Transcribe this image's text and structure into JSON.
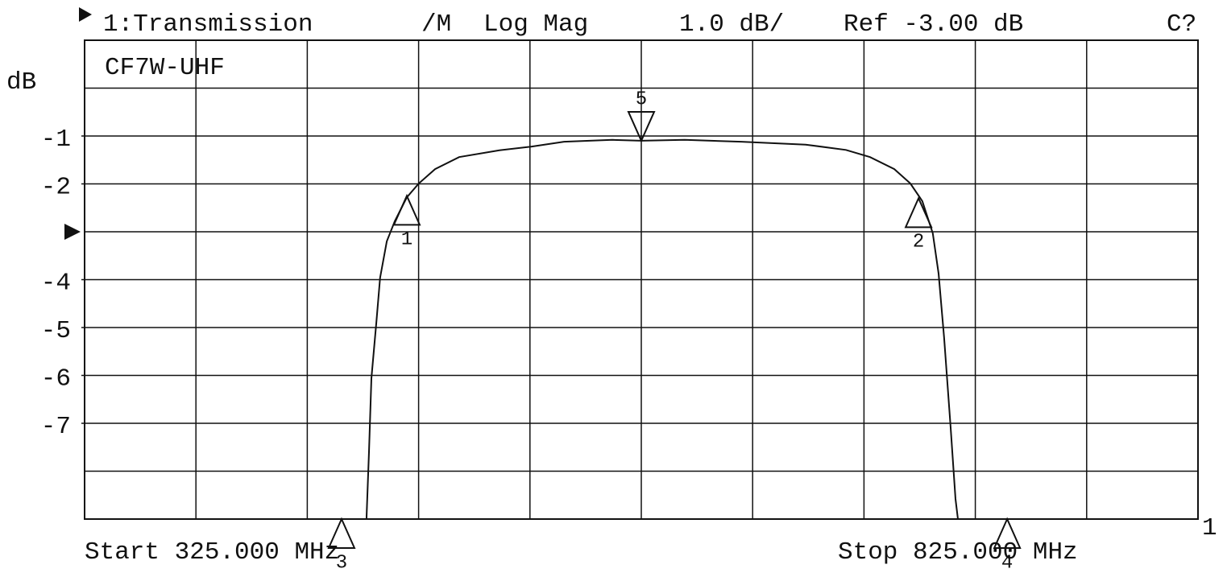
{
  "chart_data": {
    "type": "line",
    "channel": "1:Transmission",
    "format_flag": "/M",
    "format": "Log Mag",
    "scale": "1.0 dB/",
    "ref_text": "Ref -3.00 dB",
    "cal_status": "C?",
    "title": "CF7W-UHF",
    "y_label": "dB",
    "start_label": "Start 325.000 MHz",
    "stop_label": "Stop 825.000 MHz",
    "channel_marker": "1",
    "xlim": [
      325,
      825
    ],
    "ylim": [
      -9,
      1
    ],
    "yticks": [
      -1,
      -2,
      -4,
      -5,
      -6,
      -7
    ],
    "ref_level": -3,
    "color": "#111111",
    "x": [
      325,
      451.6,
      452.7,
      453.8,
      456.0,
      457.7,
      460.7,
      464.3,
      469.7,
      475.1,
      482.4,
      493.2,
      511.3,
      525.8,
      540.3,
      562.0,
      575.0,
      594.5,
      619.9,
      648.8,
      666.9,
      677.7,
      688.6,
      695.8,
      701.2,
      705.9,
      708.5,
      711.0,
      713.9,
      716.1,
      717.2,
      825
    ],
    "values": [
      -9,
      -9,
      -7.6,
      -6.06,
      -4.9,
      -3.96,
      -3.2,
      -2.78,
      -2.28,
      -1.99,
      -1.69,
      -1.44,
      -1.3,
      -1.22,
      -1.12,
      -1.08,
      -1.1,
      -1.08,
      -1.12,
      -1.18,
      -1.29,
      -1.44,
      -1.69,
      -1.99,
      -2.36,
      -3.03,
      -3.87,
      -5.22,
      -7.07,
      -8.58,
      -9,
      -9
    ],
    "markers": [
      {
        "label": "1",
        "x": 469.7,
        "y": -2.25
      },
      {
        "label": "2",
        "x": 699.5,
        "y": -2.3
      },
      {
        "label": "3",
        "x": 440.4,
        "y": -9
      },
      {
        "label": "4",
        "x": 739.3,
        "y": -9
      },
      {
        "label": "5",
        "x": 575.0,
        "y": -1.1
      }
    ]
  }
}
